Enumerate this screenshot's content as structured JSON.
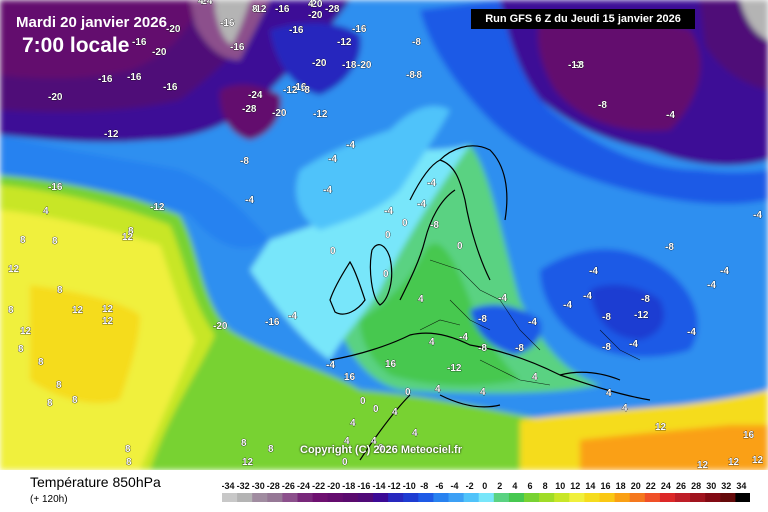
{
  "header": {
    "date": "Mardi 20 janvier 2026",
    "local_time": "7:00 locale",
    "run_info": "Run GFS 6 Z du Jeudi 15 janvier 2026"
  },
  "copyright": "Copyright (C) 2026 Meteociel.fr",
  "legend": {
    "title": "Température 850hPa",
    "subtitle": "(+ 120h)",
    "scale_labels": [
      "-34",
      "-32",
      "-30",
      "-28",
      "-26",
      "-24",
      "-22",
      "-20",
      "-18",
      "-16",
      "-14",
      "-12",
      "-10",
      "-8",
      "-6",
      "-4",
      "-2",
      "0",
      "2",
      "4",
      "6",
      "8",
      "10",
      "12",
      "14",
      "16",
      "18",
      "20",
      "22",
      "24",
      "26",
      "28",
      "30",
      "32",
      "34"
    ],
    "scale_colors": [
      "#c8c8c8",
      "#b4b4b4",
      "#a08ca0",
      "#967896",
      "#8c508c",
      "#78287a",
      "#6e1070",
      "#640c6e",
      "#5a0a6e",
      "#500a78",
      "#3c0a96",
      "#2828be",
      "#1e3cd2",
      "#1e5ae6",
      "#2882f0",
      "#3ca0f5",
      "#50c3fa",
      "#78e6fa",
      "#5ad282",
      "#46c850",
      "#78d232",
      "#a0dc28",
      "#c8e628",
      "#f0f03c",
      "#f5dc1e",
      "#fac814",
      "#faa014",
      "#f5781e",
      "#f05028",
      "#dc2828",
      "#be1e28",
      "#a0141e",
      "#820a14",
      "#640a0a",
      "#000000"
    ]
  },
  "map": {
    "labels": [
      {
        "text": "-24"
      },
      {
        "text": "-20"
      },
      {
        "text": "-12"
      },
      {
        "text": "-16"
      },
      {
        "text": "-20"
      },
      {
        "text": "-28"
      },
      {
        "text": "-16"
      },
      {
        "text": "-20"
      },
      {
        "text": "-16"
      },
      {
        "text": "-16"
      },
      {
        "text": "-16"
      },
      {
        "text": "-20"
      },
      {
        "text": "-16"
      },
      {
        "text": "-12"
      },
      {
        "text": "-8"
      },
      {
        "text": "-20"
      },
      {
        "text": "-18"
      },
      {
        "text": "-20"
      },
      {
        "text": "-16"
      },
      {
        "text": "-16"
      },
      {
        "text": "-16"
      },
      {
        "text": "-16"
      },
      {
        "text": "-20"
      },
      {
        "text": "-24"
      },
      {
        "text": "-28"
      },
      {
        "text": "-12"
      },
      {
        "text": "-8"
      },
      {
        "text": "-12"
      },
      {
        "text": "-20"
      },
      {
        "text": "-12"
      },
      {
        "text": "-8"
      },
      {
        "text": "-8"
      },
      {
        "text": "-12"
      },
      {
        "text": "-4"
      },
      {
        "text": "-4"
      },
      {
        "text": "-4"
      },
      {
        "text": "-4"
      },
      {
        "text": "-4"
      },
      {
        "text": "-4"
      },
      {
        "text": "0"
      },
      {
        "text": "0"
      },
      {
        "text": "0"
      },
      {
        "text": "0"
      },
      {
        "text": "0"
      },
      {
        "text": "-8"
      },
      {
        "text": "-8"
      },
      {
        "text": "-4"
      },
      {
        "text": "-8"
      },
      {
        "text": "-12"
      },
      {
        "text": "-8"
      },
      {
        "text": "-4"
      },
      {
        "text": "-8"
      },
      {
        "text": "-4"
      },
      {
        "text": "-8"
      },
      {
        "text": "-8"
      },
      {
        "text": "-4"
      },
      {
        "text": "-4"
      },
      {
        "text": "-4"
      },
      {
        "text": "-8"
      },
      {
        "text": "-12"
      },
      {
        "text": "-8"
      },
      {
        "text": "-4"
      },
      {
        "text": "-4"
      },
      {
        "text": "-4"
      },
      {
        "text": "-4"
      },
      {
        "text": "-4"
      },
      {
        "text": "-4"
      },
      {
        "text": "-4"
      },
      {
        "text": "-8"
      },
      {
        "text": "-8"
      },
      {
        "text": "-16"
      },
      {
        "text": "-12"
      },
      {
        "text": "-20"
      },
      {
        "text": "-16"
      },
      {
        "text": "-4"
      },
      {
        "text": "-4"
      },
      {
        "text": "4"
      },
      {
        "text": "4"
      },
      {
        "text": "4"
      },
      {
        "text": "4"
      },
      {
        "text": "4"
      },
      {
        "text": "4"
      },
      {
        "text": "4"
      },
      {
        "text": "4"
      },
      {
        "text": "8"
      },
      {
        "text": "8"
      },
      {
        "text": "8"
      },
      {
        "text": "8"
      },
      {
        "text": "8"
      },
      {
        "text": "8"
      },
      {
        "text": "8"
      },
      {
        "text": "8"
      },
      {
        "text": "8"
      },
      {
        "text": "8"
      },
      {
        "text": "8"
      },
      {
        "text": "8"
      },
      {
        "text": "12"
      },
      {
        "text": "12"
      },
      {
        "text": "12"
      },
      {
        "text": "12"
      },
      {
        "text": "12"
      },
      {
        "text": "12"
      },
      {
        "text": "12"
      },
      {
        "text": "12"
      },
      {
        "text": "12"
      },
      {
        "text": "12"
      },
      {
        "text": "16"
      },
      {
        "text": "16"
      },
      {
        "text": "16"
      },
      {
        "text": "0"
      },
      {
        "text": "0"
      },
      {
        "text": "0"
      },
      {
        "text": "0"
      },
      {
        "text": "0"
      },
      {
        "text": "4"
      },
      {
        "text": "4"
      },
      {
        "text": "4"
      },
      {
        "text": "4"
      },
      {
        "text": "4"
      },
      {
        "text": "8"
      },
      {
        "text": "8"
      },
      {
        "text": "12"
      },
      {
        "text": "4"
      },
      {
        "text": "4"
      },
      {
        "text": "8"
      }
    ]
  }
}
